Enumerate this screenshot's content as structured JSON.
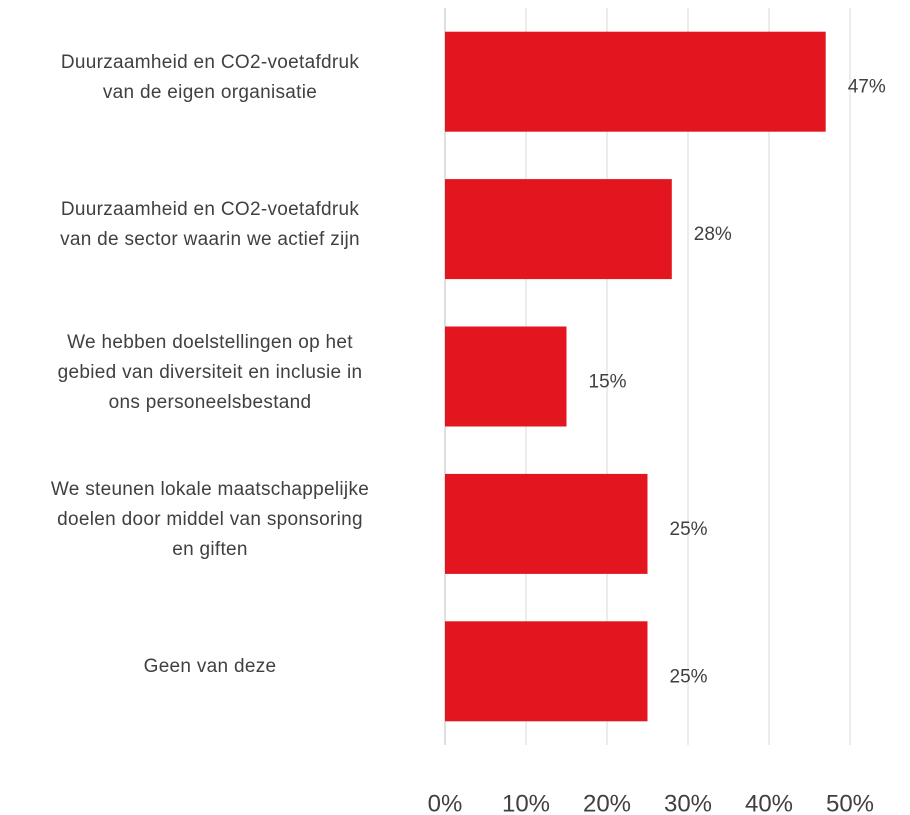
{
  "chart_data": {
    "type": "bar",
    "orientation": "horizontal",
    "categories": [
      "Duurzaamheid en CO2-voetafdruk\nvan de eigen organisatie",
      "Duurzaamheid en CO2-voetafdruk\nvan de sector waarin we actief zijn",
      "We hebben doelstellingen op het\ngebied van diversiteit en inclusie in\nons personeelsbestand",
      "We steunen lokale maatschappelijke\ndoelen door middel van sponsoring\nen giften",
      "Geen van deze"
    ],
    "values": [
      47,
      28,
      15,
      25,
      25
    ],
    "value_labels": [
      "47%",
      "28%",
      "15%",
      "25%",
      "25%"
    ],
    "color": "#e3151f",
    "xlim": [
      0,
      50
    ],
    "xticks": [
      {
        "value": 0,
        "label": "0%"
      },
      {
        "value": 10,
        "label": "10%"
      },
      {
        "value": 20,
        "label": "20%"
      },
      {
        "value": 30,
        "label": "30%"
      },
      {
        "value": 40,
        "label": "40%"
      },
      {
        "value": 50,
        "label": "50%"
      }
    ],
    "grid": true
  }
}
